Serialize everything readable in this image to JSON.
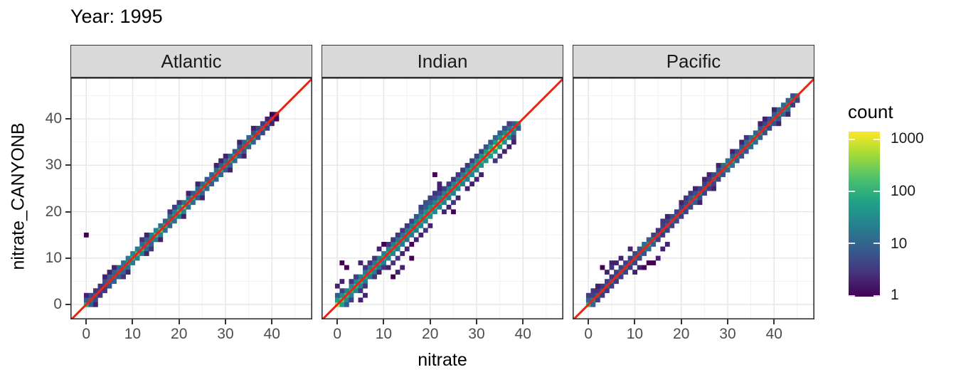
{
  "title": "Year: 1995",
  "chart_data": {
    "type": "heatmap",
    "subtype": "2d-bin scatter (geom_bin2d) with y=x reference line, faceted by ocean basin",
    "title": "Year: 1995",
    "xlabel": "nitrate",
    "ylabel": "nitrate_CANYONB",
    "binwidth": 1,
    "axes": {
      "x_range": [
        -3.4,
        48.7
      ],
      "y_range": [
        -3.2,
        48.9
      ],
      "x_ticks": [
        0,
        10,
        20,
        30,
        40
      ],
      "y_ticks": [
        0,
        10,
        20,
        30,
        40
      ],
      "x_minor": [
        5,
        15,
        25,
        35,
        45
      ],
      "y_minor": [
        5,
        15,
        25,
        35,
        45
      ],
      "grid": true
    },
    "reference_line": {
      "type": "y=x",
      "color": "#ee2213"
    },
    "panels": [
      {
        "facet": "Atlantic",
        "diag_start": 0,
        "diag_counts": [
          90,
          15,
          8,
          4,
          4,
          12,
          15,
          18,
          20,
          45,
          90,
          160,
          90,
          35,
          30,
          150,
          200,
          90,
          40,
          70,
          160,
          260,
          90,
          80,
          30,
          70,
          80,
          35,
          70,
          80,
          30,
          70,
          80,
          30,
          25,
          70,
          70,
          25,
          20,
          15,
          4,
          2
        ],
        "band_counts": [
          0,
          8,
          5,
          3,
          3,
          6,
          8,
          9,
          10,
          14,
          20,
          25,
          20,
          12,
          10,
          20,
          25,
          15,
          10,
          14,
          20,
          25,
          15,
          12,
          8,
          10,
          12,
          8,
          10,
          12,
          8,
          10,
          12,
          8,
          6,
          10,
          10,
          6,
          5,
          4,
          2,
          1
        ],
        "extra_bins": [
          [
            0,
            15,
            1
          ],
          [
            4,
            6,
            2
          ],
          [
            5,
            7,
            2
          ],
          [
            6,
            8,
            2
          ],
          [
            8,
            6,
            3
          ],
          [
            9,
            7,
            2
          ],
          [
            12,
            14,
            3
          ],
          [
            13,
            15,
            2
          ],
          [
            13,
            11,
            2
          ],
          [
            14,
            12,
            3
          ],
          [
            18,
            20,
            3
          ],
          [
            19,
            21,
            4
          ],
          [
            20,
            22,
            3
          ],
          [
            21,
            19,
            2
          ],
          [
            24,
            26,
            2
          ],
          [
            25,
            23,
            2
          ],
          [
            28,
            30,
            2
          ],
          [
            29,
            31,
            2
          ],
          [
            30,
            32,
            2
          ],
          [
            31,
            29,
            2
          ],
          [
            33,
            35,
            2
          ],
          [
            34,
            32,
            2
          ],
          [
            36,
            38,
            2
          ],
          [
            2,
            0,
            2
          ],
          [
            0,
            2,
            2
          ],
          [
            16,
            14,
            2
          ],
          [
            22,
            24,
            2
          ]
        ]
      },
      {
        "facet": "Indian",
        "diag_start": 0,
        "diag_counts": [
          700,
          250,
          120,
          90,
          110,
          90,
          80,
          70,
          75,
          70,
          75,
          80,
          85,
          80,
          70,
          65,
          70,
          80,
          90,
          100,
          110,
          100,
          90,
          85,
          80,
          85,
          90,
          85,
          80,
          90,
          110,
          140,
          200,
          350,
          700,
          600,
          250,
          120,
          70,
          40
        ],
        "band_counts": [
          120,
          60,
          30,
          25,
          30,
          25,
          20,
          18,
          20,
          18,
          20,
          22,
          25,
          22,
          18,
          16,
          18,
          20,
          25,
          30,
          35,
          30,
          25,
          22,
          20,
          22,
          25,
          22,
          20,
          25,
          30,
          35,
          40,
          50,
          60,
          50,
          35,
          25,
          15,
          8
        ],
        "extra_bins": [
          [
            0,
            2,
            8
          ],
          [
            2,
            0,
            8
          ],
          [
            1,
            3,
            4
          ],
          [
            3,
            1,
            4
          ],
          [
            3,
            5,
            3
          ],
          [
            5,
            3,
            3
          ],
          [
            4,
            6,
            4
          ],
          [
            6,
            4,
            3
          ],
          [
            6,
            8,
            3
          ],
          [
            8,
            6,
            3
          ],
          [
            7,
            9,
            3
          ],
          [
            9,
            7,
            2
          ],
          [
            8,
            10,
            3
          ],
          [
            10,
            8,
            3
          ],
          [
            1,
            9,
            1
          ],
          [
            2,
            8,
            1
          ],
          [
            5,
            9,
            2
          ],
          [
            11,
            8,
            2
          ],
          [
            12,
            9,
            3
          ],
          [
            13,
            10,
            3
          ],
          [
            12,
            6,
            1
          ],
          [
            13,
            7,
            2
          ],
          [
            14,
            8,
            2
          ],
          [
            11,
            13,
            3
          ],
          [
            12,
            14,
            3
          ],
          [
            13,
            15,
            3
          ],
          [
            10,
            13,
            1
          ],
          [
            9,
            12,
            2
          ],
          [
            14,
            16,
            3
          ],
          [
            15,
            17,
            3
          ],
          [
            14,
            11,
            2
          ],
          [
            15,
            12,
            2
          ],
          [
            16,
            13,
            1
          ],
          [
            16,
            18,
            4
          ],
          [
            17,
            19,
            6
          ],
          [
            18,
            20,
            8
          ],
          [
            18,
            21,
            4
          ],
          [
            19,
            22,
            6
          ],
          [
            19,
            21,
            8
          ],
          [
            20,
            23,
            4
          ],
          [
            20,
            22,
            8
          ],
          [
            21,
            23,
            6
          ],
          [
            21,
            24,
            3
          ],
          [
            22,
            24,
            4
          ],
          [
            22,
            25,
            2
          ],
          [
            21,
            28,
            1
          ],
          [
            22,
            26,
            2
          ],
          [
            23,
            25,
            4
          ],
          [
            24,
            26,
            3
          ],
          [
            17,
            14,
            2
          ],
          [
            18,
            15,
            2
          ],
          [
            19,
            16,
            3
          ],
          [
            20,
            17,
            2
          ],
          [
            23,
            20,
            2
          ],
          [
            24,
            21,
            2
          ],
          [
            25,
            22,
            3
          ],
          [
            25,
            27,
            3
          ],
          [
            26,
            28,
            3
          ],
          [
            27,
            29,
            3
          ],
          [
            28,
            30,
            3
          ],
          [
            26,
            23,
            2
          ],
          [
            28,
            25,
            2
          ],
          [
            29,
            31,
            4
          ],
          [
            30,
            32,
            4
          ],
          [
            29,
            26,
            2
          ],
          [
            31,
            33,
            4
          ],
          [
            30,
            27,
            2
          ],
          [
            32,
            34,
            6
          ],
          [
            31,
            28,
            2
          ],
          [
            33,
            35,
            8
          ],
          [
            34,
            36,
            10
          ],
          [
            35,
            37,
            8
          ],
          [
            34,
            31,
            3
          ],
          [
            35,
            32,
            3
          ],
          [
            36,
            38,
            6
          ],
          [
            36,
            33,
            2
          ],
          [
            37,
            39,
            4
          ],
          [
            37,
            34,
            2
          ],
          [
            25,
            20,
            1
          ],
          [
            16,
            10,
            1
          ],
          [
            38,
            36,
            4
          ],
          [
            39,
            38,
            8
          ],
          [
            38,
            35,
            2
          ],
          [
            5,
            1,
            2
          ],
          [
            6,
            2,
            2
          ],
          [
            0,
            4,
            2
          ],
          [
            1,
            5,
            2
          ]
        ]
      },
      {
        "facet": "Pacific",
        "diag_start": 0,
        "diag_counts": [
          120,
          30,
          12,
          8,
          10,
          12,
          10,
          12,
          14,
          12,
          14,
          16,
          20,
          60,
          30,
          14,
          10,
          12,
          14,
          16,
          14,
          12,
          16,
          30,
          20,
          14,
          12,
          14,
          16,
          20,
          60,
          70,
          30,
          20,
          25,
          60,
          70,
          40,
          20,
          16,
          20,
          30,
          40,
          50,
          40,
          20
        ],
        "band_counts": [
          40,
          10,
          4,
          3,
          3,
          4,
          3,
          4,
          4,
          4,
          4,
          5,
          6,
          12,
          8,
          4,
          3,
          4,
          4,
          5,
          4,
          4,
          5,
          8,
          6,
          4,
          4,
          4,
          5,
          6,
          12,
          14,
          8,
          6,
          7,
          12,
          14,
          10,
          6,
          5,
          6,
          8,
          10,
          12,
          10,
          6
        ],
        "extra_bins": [
          [
            3,
            8,
            1
          ],
          [
            5,
            9,
            2
          ],
          [
            4,
            7,
            2
          ],
          [
            6,
            9,
            2
          ],
          [
            5,
            8,
            3
          ],
          [
            13,
            9,
            1
          ],
          [
            14,
            9,
            1
          ],
          [
            15,
            10,
            2
          ],
          [
            12,
            8,
            1
          ],
          [
            16,
            12,
            2
          ],
          [
            17,
            13,
            2
          ],
          [
            10,
            7,
            2
          ],
          [
            11,
            8,
            2
          ],
          [
            16,
            18,
            3
          ],
          [
            17,
            19,
            2
          ],
          [
            20,
            22,
            2
          ],
          [
            21,
            23,
            3
          ],
          [
            22,
            24,
            3
          ],
          [
            23,
            25,
            2
          ],
          [
            25,
            27,
            2
          ],
          [
            26,
            28,
            2
          ],
          [
            28,
            30,
            2
          ],
          [
            24,
            22,
            2
          ],
          [
            27,
            25,
            2
          ],
          [
            31,
            33,
            2
          ],
          [
            33,
            35,
            2
          ],
          [
            34,
            36,
            3
          ],
          [
            37,
            39,
            2
          ],
          [
            38,
            40,
            2
          ],
          [
            40,
            42,
            2
          ],
          [
            41,
            39,
            2
          ],
          [
            43,
            41,
            2
          ],
          [
            44,
            43,
            3
          ],
          [
            45,
            44,
            4
          ],
          [
            2,
            4,
            2
          ],
          [
            1,
            3,
            3
          ],
          [
            0,
            2,
            4
          ],
          [
            7,
            10,
            2
          ],
          [
            9,
            12,
            2
          ]
        ]
      }
    ],
    "legend": {
      "title": "count",
      "position": "right",
      "scale": "log10",
      "tick_labels": [
        "1000",
        "100",
        "10",
        "1"
      ],
      "tick_values": [
        1000,
        100,
        10,
        1
      ],
      "log_max": 3.15,
      "viridis_stops": [
        "#440154",
        "#46327e",
        "#365c8d",
        "#277f8e",
        "#1fa187",
        "#4ac16d",
        "#a0da39",
        "#fde725"
      ]
    },
    "colors": {
      "strip_background": "#d9d9d9",
      "strip_border": "#333333",
      "panel_background": "#ffffff",
      "panel_border": "#333333",
      "grid_major": "#e6e6e6",
      "grid_minor": "#f2f2f2",
      "tick_label": "#4d4d4d",
      "axis_tick": "#333333",
      "reference_line": "#ee2213"
    }
  }
}
